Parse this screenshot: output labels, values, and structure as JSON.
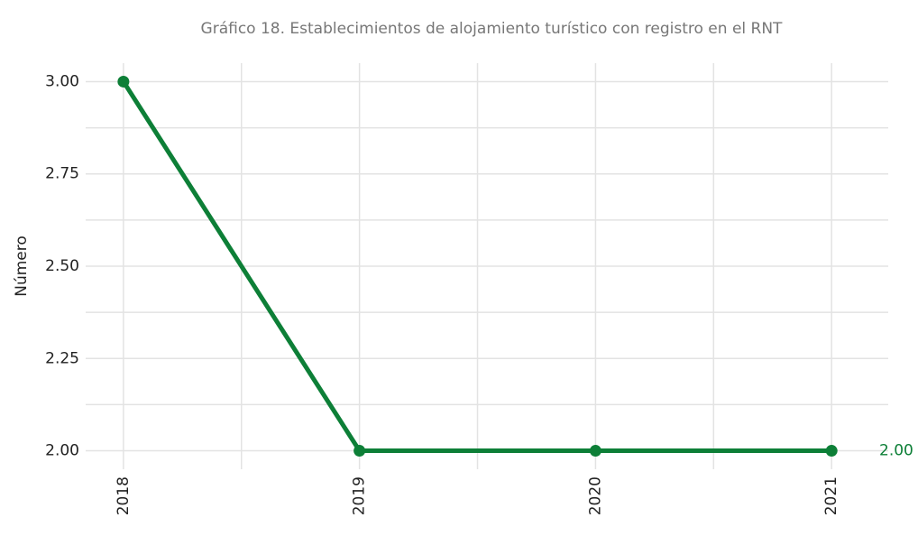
{
  "chart_data": {
    "type": "line",
    "title": "Gráfico 18. Establecimientos de alojamiento turístico con registro en el RNT",
    "y_label": "Número",
    "x": [
      2018,
      2019,
      2020,
      2021
    ],
    "series": [
      {
        "name": "Número",
        "color": "#0d7f37",
        "values": [
          3,
          2,
          2,
          2
        ],
        "value_labels": [
          null,
          null,
          null,
          "2.00"
        ]
      }
    ],
    "xlim": [
      2017.84,
      2021.24
    ],
    "xticks": [
      2018,
      2019,
      2020,
      2021
    ],
    "x_minor_ticks": [
      2018.5,
      2019.5,
      2020.5
    ],
    "ylim": [
      1.95,
      3.05
    ],
    "yticks": [
      {
        "value": 2,
        "label": "2.00"
      },
      {
        "value": 2.25,
        "label": "2.25"
      },
      {
        "value": 2.5,
        "label": "2.50"
      },
      {
        "value": 2.75,
        "label": "2.75"
      },
      {
        "value": 3,
        "label": "3.00"
      }
    ],
    "y_minor_ticks": [
      2.125,
      2.375,
      2.625,
      2.875
    ],
    "grid": true
  }
}
